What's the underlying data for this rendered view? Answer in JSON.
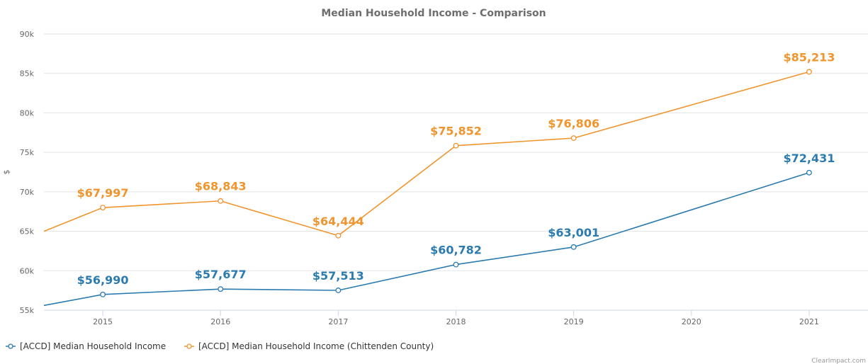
{
  "chart_data": {
    "type": "line",
    "title": "Median Household Income - Comparison",
    "ylabel": "$",
    "ylim": [
      55000,
      90000
    ],
    "y_ticks": [
      55000,
      60000,
      65000,
      70000,
      75000,
      80000,
      85000,
      90000
    ],
    "y_tick_labels": [
      "55k",
      "60k",
      "65k",
      "70k",
      "75k",
      "80k",
      "85k",
      "90k"
    ],
    "x_range": [
      2014.5,
      2021.5
    ],
    "categories": [
      "2015",
      "2016",
      "2017",
      "2018",
      "2019",
      "2020",
      "2021"
    ],
    "grid": true,
    "legend_position": "bottom-left",
    "series": [
      {
        "name": "[ACCD] Median Household Income",
        "color": "#2b7bb0",
        "leading_value": 55600,
        "points": [
          {
            "x": 2015,
            "y": 56990,
            "label": "$56,990"
          },
          {
            "x": 2016,
            "y": 57677,
            "label": "$57,677"
          },
          {
            "x": 2017,
            "y": 57513,
            "label": "$57,513"
          },
          {
            "x": 2018,
            "y": 60782,
            "label": "$60,782"
          },
          {
            "x": 2019,
            "y": 63001,
            "label": "$63,001"
          },
          {
            "x": 2021,
            "y": 72431,
            "label": "$72,431"
          }
        ]
      },
      {
        "name": "[ACCD] Median Household Income (Chittenden County)",
        "color": "#f0952e",
        "leading_value": 65000,
        "points": [
          {
            "x": 2015,
            "y": 67997,
            "label": "$67,997"
          },
          {
            "x": 2016,
            "y": 68843,
            "label": "$68,843"
          },
          {
            "x": 2017,
            "y": 64444,
            "label": "$64,444"
          },
          {
            "x": 2018,
            "y": 75852,
            "label": "$75,852"
          },
          {
            "x": 2019,
            "y": 76806,
            "label": "$76,806"
          },
          {
            "x": 2021,
            "y": 85213,
            "label": "$85,213"
          }
        ]
      }
    ]
  },
  "credit": "ClearImpact.com"
}
